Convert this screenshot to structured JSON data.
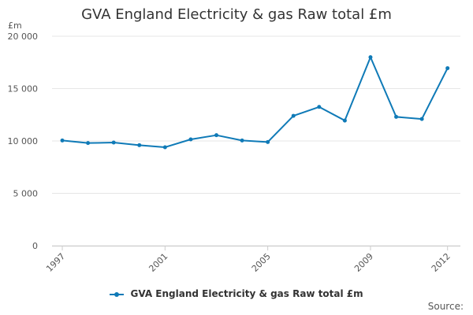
{
  "chart_data": {
    "type": "line",
    "title": "GVA England Electricity & gas Raw total £m",
    "ylabel": "£m",
    "xlabel": "",
    "x": [
      1997,
      1998,
      1999,
      2000,
      2001,
      2002,
      2003,
      2004,
      2005,
      2006,
      2007,
      2008,
      2009,
      2010,
      2011,
      2012
    ],
    "x_tick_labels": [
      "1997",
      "2001",
      "2005",
      "2009",
      "2012"
    ],
    "x_tick_values": [
      1997,
      2001,
      2005,
      2009,
      2012
    ],
    "y_tick_labels": [
      "0",
      "5 000",
      "10 000",
      "15 000",
      "20 000"
    ],
    "y_tick_values": [
      0,
      5000,
      10000,
      15000,
      20000
    ],
    "ylim": [
      0,
      20000
    ],
    "xlim": [
      1996.6,
      2012.5
    ],
    "grid": true,
    "legend_position": "bottom",
    "series": [
      {
        "name": "GVA England Electricity & gas Raw total £m",
        "color": "#0f7ab7",
        "values": [
          10050,
          9800,
          9850,
          9600,
          9400,
          10150,
          10550,
          10050,
          9900,
          12400,
          13250,
          11950,
          18000,
          12300,
          12100,
          16950
        ]
      }
    ],
    "source_label": "Source:"
  }
}
